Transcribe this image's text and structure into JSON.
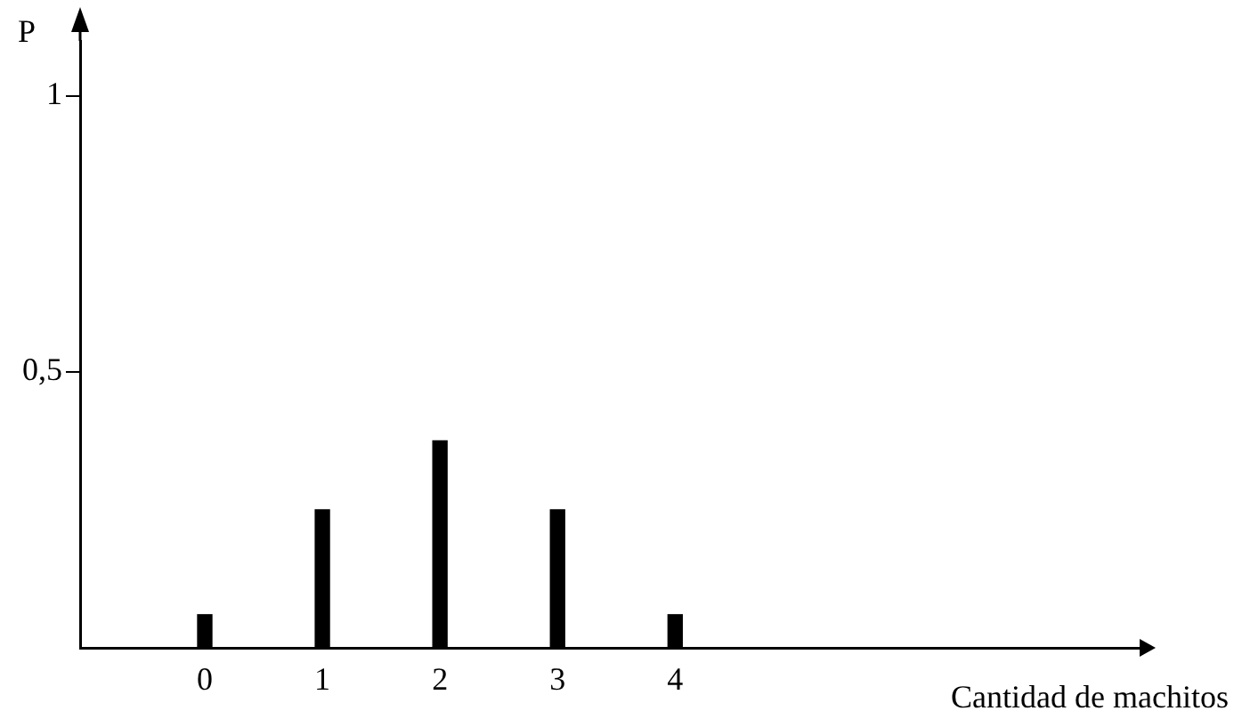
{
  "chart_data": {
    "type": "bar",
    "xlabel": "Cantidad de machitos",
    "ylabel": "P",
    "x": [
      0,
      1,
      2,
      3,
      4
    ],
    "values": [
      0.06,
      0.25,
      0.375,
      0.25,
      0.06
    ],
    "color": "#000000",
    "xlim": [
      -1.06,
      7.95
    ],
    "xticks": [
      0,
      1,
      2,
      3,
      4
    ],
    "ylim": [
      0,
      1.1
    ],
    "yticks": [
      {
        "value": 0.5,
        "label": "0,5"
      },
      1
    ],
    "grid": false,
    "legend": false
  }
}
